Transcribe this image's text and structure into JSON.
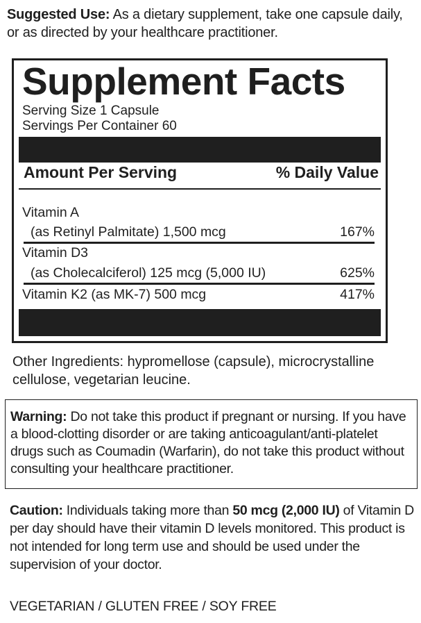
{
  "suggested_use": {
    "label": "Suggested Use:",
    "text": " As a dietary supplement, take one capsule daily, or as directed by your healthcare practitioner."
  },
  "facts": {
    "title": "Supplement Facts",
    "serving_size": "Serving Size 1 Capsule",
    "servings_per_container": "Servings Per Container 60",
    "amount_header": "Amount Per Serving",
    "dv_header": "% Daily Value",
    "nutrients": [
      {
        "line1": "Vitamin A",
        "line2": "(as Retinyl Palmitate) 1,500 mcg",
        "dv": "167%"
      },
      {
        "line1": "Vitamin D3",
        "line2": "(as Cholecalciferol) 125 mcg (5,000 IU)",
        "dv": "625%"
      },
      {
        "line1": "Vitamin K2 (as MK-7) 500 mcg",
        "dv": "417%"
      }
    ]
  },
  "other_ingredients": "Other Ingredients: hypromellose (capsule), microcrystalline cellulose, vegetarian leucine.",
  "warning": {
    "label": "Warning:",
    "text": " Do not take this product if pregnant or nursing. If you have a blood-clotting disorder or are taking anticoagulant/anti-platelet drugs such as Coumadin (Warfarin), do not take this product without consulting your healthcare practitioner."
  },
  "caution": {
    "label": "Caution:",
    "text": " Individuals taking more than ",
    "dose": "50 mcg (2,000 IU)",
    "text2": " of Vitamin D per day should have their vitamin D levels monitored. This product is not intended for long term use and should be used under the supervision of your doctor."
  },
  "claims": "VEGETARIAN / GLUTEN FREE / SOY FREE"
}
